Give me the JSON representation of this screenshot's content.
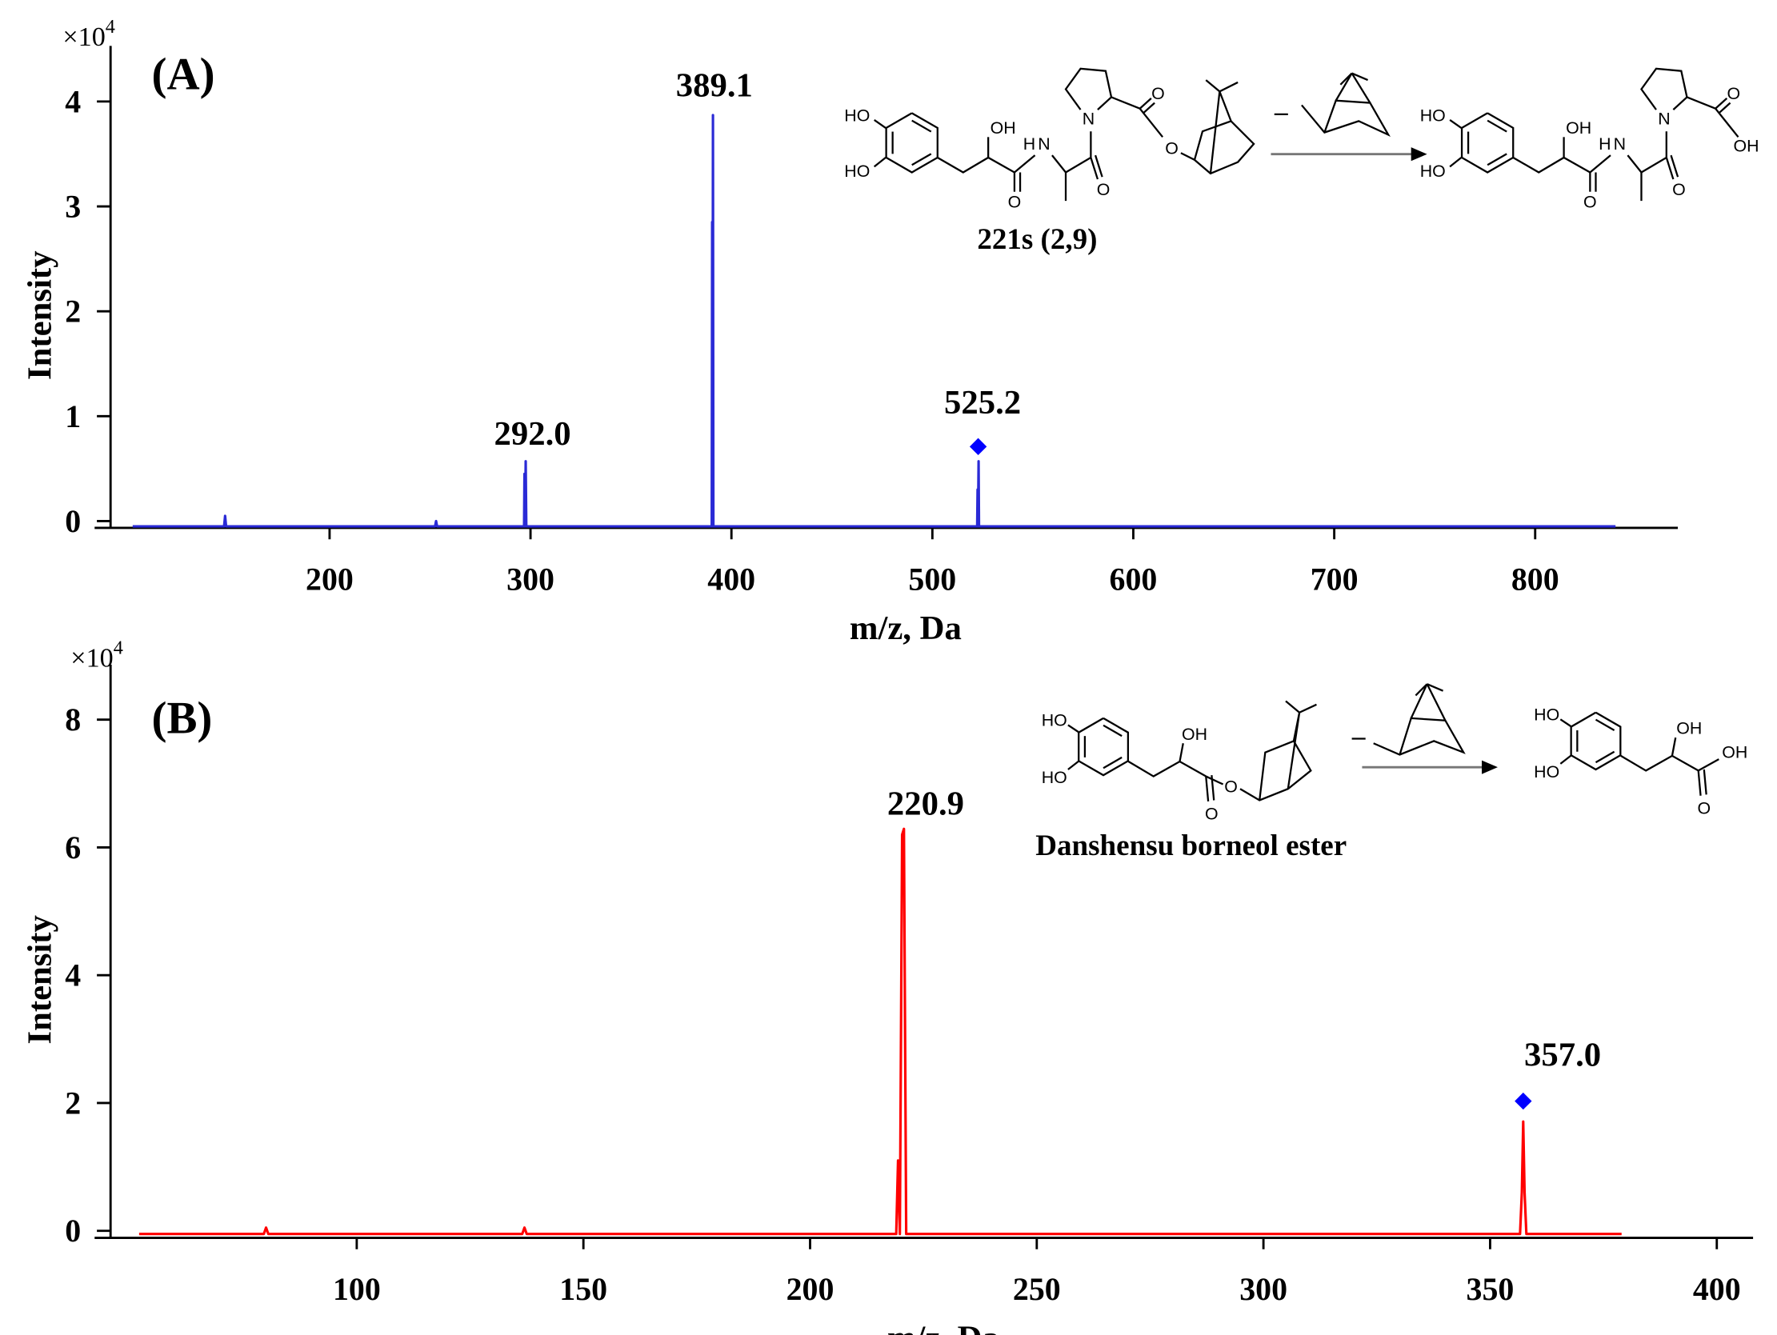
{
  "chart_data": [
    {
      "type": "line",
      "panel_label": "(A)",
      "y_multiplier": {
        "base": "×10",
        "exponent": "4"
      },
      "x_label": "m/z, Da",
      "y_label": "Intensity",
      "xlim": [
        91,
        871
      ],
      "ylim": [
        -0.065,
        4.53
      ],
      "xticks": [
        200,
        300,
        400,
        500,
        600,
        700,
        800
      ],
      "yticks": [
        0,
        1,
        2,
        3,
        4
      ],
      "series": [
        {
          "color": "#2a2ad6",
          "x": [
            102,
            147.5,
            148,
            148.5,
            252.5,
            253,
            253.5,
            296.8,
            297,
            297.3,
            297.6,
            297.9,
            390.2,
            390.4,
            390.6,
            390.8,
            391,
            522.3,
            522.5,
            522.7,
            523,
            523.2,
            840
          ],
          "values": [
            -0.05,
            -0.05,
            0.05,
            -0.05,
            -0.05,
            0.0,
            -0.05,
            -0.05,
            0.45,
            -0.05,
            0.57,
            -0.05,
            -0.05,
            2.85,
            -0.05,
            3.87,
            -0.05,
            -0.05,
            0.3,
            -0.05,
            0.57,
            -0.05,
            -0.05
          ]
        }
      ],
      "precursor": {
        "x": 522.8,
        "y": 0.71,
        "color": "#0000ff"
      },
      "annotations": [
        {
          "text": "292.0",
          "x": 301,
          "y": 0.83
        },
        {
          "text": "389.1",
          "x": 391.5,
          "y": 4.15
        },
        {
          "text": "525.2",
          "x": 525,
          "y": 1.13
        }
      ],
      "scheme": {
        "reactant_name": "221s (2,9)",
        "reactant_atoms": [
          "HO",
          "HO",
          "OH",
          "O",
          "H",
          "N",
          "O",
          "N",
          "O",
          "O"
        ],
        "product_atoms": [
          "HO",
          "HO",
          "OH",
          "O",
          "H",
          "N",
          "O",
          "N",
          "O",
          "OH"
        ]
      }
    },
    {
      "type": "line",
      "panel_label": "(B)",
      "y_multiplier": {
        "base": "×10",
        "exponent": "4"
      },
      "x_label": "m/z, Da",
      "y_label": "Intensity",
      "xlim": [
        45.7,
        408
      ],
      "ylim": [
        -0.11,
        8.86
      ],
      "xticks": [
        100,
        150,
        200,
        250,
        300,
        350,
        400
      ],
      "yticks": [
        0,
        2,
        4,
        6,
        8
      ],
      "series": [
        {
          "color": "#ff0000",
          "x": [
            52,
            79.5,
            80,
            80.5,
            136.5,
            137,
            137.5,
            219,
            219.4,
            219.8,
            220.3,
            220.7,
            221.2,
            356.6,
            357,
            357.3,
            357.6,
            358,
            379
          ],
          "values": [
            -0.05,
            -0.05,
            0.05,
            -0.05,
            -0.05,
            0.05,
            -0.05,
            -0.05,
            1.1,
            -0.05,
            6.2,
            6.29,
            -0.05,
            -0.05,
            0.6,
            1.71,
            0.6,
            -0.05,
            -0.05
          ]
        }
      ],
      "precursor": {
        "x": 357.3,
        "y": 2.03,
        "color": "#0000ff"
      },
      "annotations": [
        {
          "text": "220.9",
          "x": 225.5,
          "y": 6.68
        },
        {
          "text": "357.0",
          "x": 366,
          "y": 2.75
        }
      ],
      "scheme": {
        "reactant_name": "Danshensu borneol ester",
        "reactant_atoms": [
          "HO",
          "HO",
          "OH",
          "O",
          "O"
        ],
        "product_atoms": [
          "HO",
          "HO",
          "OH",
          "OH",
          "O"
        ]
      }
    }
  ]
}
